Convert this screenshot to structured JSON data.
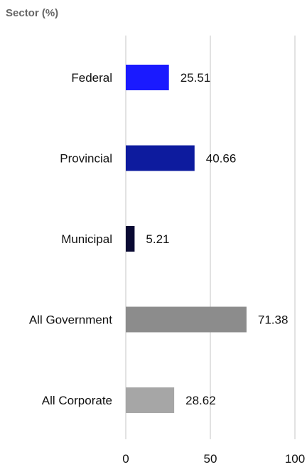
{
  "chart_data": {
    "type": "bar",
    "orientation": "horizontal",
    "title": "Sector (%)",
    "xlabel": "",
    "ylabel": "",
    "categories": [
      "Federal",
      "Provincial",
      "Municipal",
      "All Government",
      "All Corporate"
    ],
    "values": [
      25.51,
      40.66,
      5.21,
      71.38,
      28.62
    ],
    "value_labels": [
      "25.51",
      "40.66",
      "5.21",
      "71.38",
      "28.62"
    ],
    "bar_colors": [
      "#1a1aff",
      "#0d1b9e",
      "#0a0a33",
      "#8c8c8c",
      "#a6a6a6"
    ],
    "xlim": [
      0,
      100
    ],
    "x_ticks": [
      0,
      50,
      100
    ],
    "x_tick_labels": [
      "0",
      "50",
      "100"
    ],
    "grid": "vertical",
    "legend": "none"
  }
}
